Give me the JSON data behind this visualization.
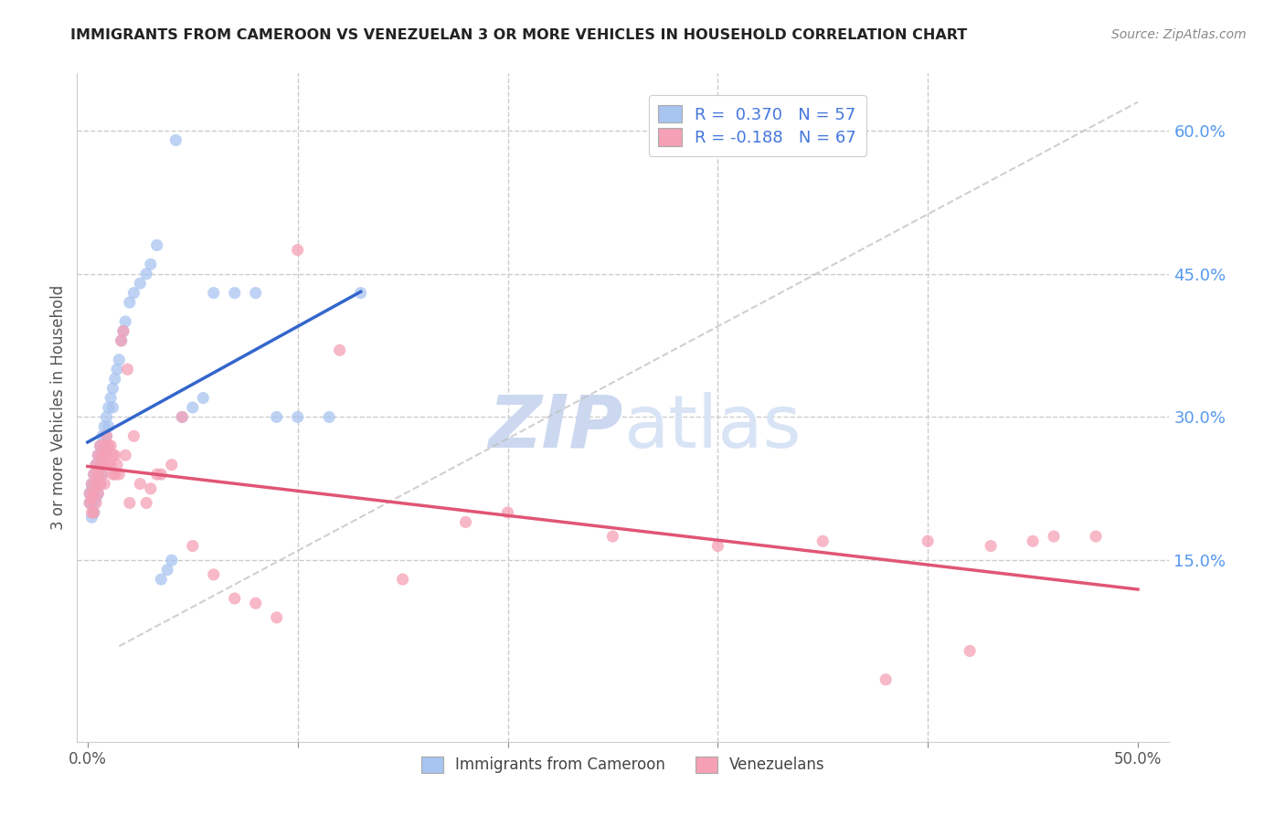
{
  "title": "IMMIGRANTS FROM CAMEROON VS VENEZUELAN 3 OR MORE VEHICLES IN HOUSEHOLD CORRELATION CHART",
  "source": "Source: ZipAtlas.com",
  "ylabel": "3 or more Vehicles in Household",
  "color_cameroon": "#a8c4f0",
  "color_venezuelan": "#f5a0b5",
  "color_trendline_cameroon": "#3366cc",
  "color_trendline_venezuelan": "#e05575",
  "color_diagonal": "#c0c0c0",
  "watermark_zip": "#ccd8f0",
  "watermark_atlas": "#ccd8f0",
  "cam_x": [
    0.001,
    0.001,
    0.002,
    0.002,
    0.002,
    0.002,
    0.003,
    0.003,
    0.003,
    0.003,
    0.004,
    0.004,
    0.004,
    0.005,
    0.005,
    0.005,
    0.006,
    0.006,
    0.006,
    0.007,
    0.007,
    0.007,
    0.008,
    0.008,
    0.009,
    0.009,
    0.01,
    0.01,
    0.011,
    0.012,
    0.012,
    0.013,
    0.014,
    0.015,
    0.016,
    0.017,
    0.018,
    0.02,
    0.022,
    0.025,
    0.028,
    0.03,
    0.033,
    0.035,
    0.038,
    0.04,
    0.042,
    0.045,
    0.05,
    0.055,
    0.06,
    0.07,
    0.08,
    0.09,
    0.1,
    0.115,
    0.13
  ],
  "cam_y": [
    0.22,
    0.21,
    0.23,
    0.215,
    0.225,
    0.195,
    0.24,
    0.22,
    0.21,
    0.2,
    0.25,
    0.23,
    0.215,
    0.26,
    0.24,
    0.22,
    0.27,
    0.25,
    0.23,
    0.28,
    0.26,
    0.24,
    0.29,
    0.27,
    0.3,
    0.28,
    0.31,
    0.29,
    0.32,
    0.33,
    0.31,
    0.34,
    0.35,
    0.36,
    0.38,
    0.39,
    0.4,
    0.42,
    0.43,
    0.44,
    0.45,
    0.46,
    0.48,
    0.13,
    0.14,
    0.15,
    0.59,
    0.3,
    0.31,
    0.32,
    0.43,
    0.43,
    0.43,
    0.3,
    0.3,
    0.3,
    0.43
  ],
  "ven_x": [
    0.001,
    0.001,
    0.002,
    0.002,
    0.002,
    0.003,
    0.003,
    0.003,
    0.004,
    0.004,
    0.004,
    0.005,
    0.005,
    0.005,
    0.006,
    0.006,
    0.006,
    0.007,
    0.007,
    0.008,
    0.008,
    0.008,
    0.009,
    0.009,
    0.01,
    0.01,
    0.011,
    0.011,
    0.012,
    0.012,
    0.013,
    0.013,
    0.014,
    0.015,
    0.016,
    0.017,
    0.018,
    0.019,
    0.02,
    0.022,
    0.025,
    0.028,
    0.03,
    0.033,
    0.035,
    0.04,
    0.045,
    0.05,
    0.06,
    0.07,
    0.08,
    0.09,
    0.1,
    0.12,
    0.15,
    0.18,
    0.2,
    0.25,
    0.3,
    0.35,
    0.38,
    0.4,
    0.42,
    0.43,
    0.45,
    0.46,
    0.48
  ],
  "ven_y": [
    0.22,
    0.21,
    0.23,
    0.2,
    0.215,
    0.24,
    0.22,
    0.2,
    0.25,
    0.23,
    0.21,
    0.26,
    0.24,
    0.22,
    0.27,
    0.25,
    0.23,
    0.26,
    0.24,
    0.27,
    0.25,
    0.23,
    0.28,
    0.26,
    0.27,
    0.25,
    0.27,
    0.25,
    0.26,
    0.24,
    0.26,
    0.24,
    0.25,
    0.24,
    0.38,
    0.39,
    0.26,
    0.35,
    0.21,
    0.28,
    0.23,
    0.21,
    0.225,
    0.24,
    0.24,
    0.25,
    0.3,
    0.165,
    0.135,
    0.11,
    0.105,
    0.09,
    0.475,
    0.37,
    0.13,
    0.19,
    0.2,
    0.175,
    0.165,
    0.17,
    0.025,
    0.17,
    0.055,
    0.165,
    0.17,
    0.175,
    0.175
  ],
  "xlim": [
    0.0,
    0.5
  ],
  "ylim": [
    0.0,
    0.63
  ],
  "ytick_vals": [
    0.15,
    0.3,
    0.45,
    0.6
  ],
  "ytick_labels": [
    "15.0%",
    "30.0%",
    "45.0%",
    "60.0%"
  ],
  "xtick_vals": [
    0.0,
    0.5
  ],
  "xtick_labels": [
    "0.0%",
    "50.0%"
  ]
}
